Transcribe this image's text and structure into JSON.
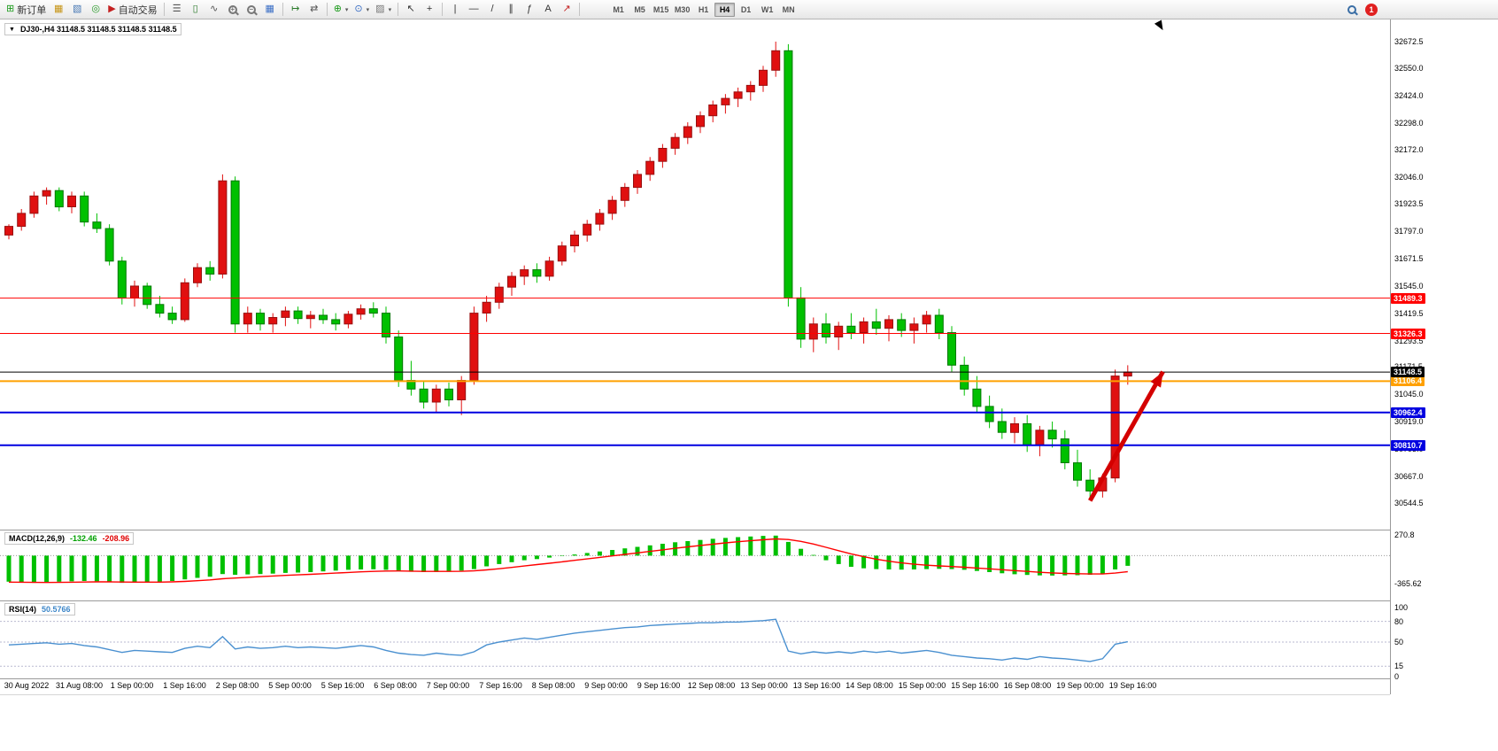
{
  "toolbar": {
    "new_order_label": "新订单",
    "autotrading_label": "自动交易",
    "timeframes": [
      "M1",
      "M5",
      "M15",
      "M30",
      "H1",
      "H4",
      "D1",
      "W1",
      "MN"
    ],
    "active_timeframe": "H4",
    "notification_count": "1"
  },
  "icons": {
    "dropdown": "▼",
    "caret": "▾",
    "new_order": "⊞",
    "charts": "▦",
    "profiles": "▧",
    "market": "◎",
    "autotrading_play": "▶",
    "bars_chart": "☰",
    "candle_chart": "▯",
    "line_chart": "∿",
    "zoom_in_sign": "+",
    "zoom_out_sign": "−",
    "tile_windows": "▦",
    "auto_scroll": "↦",
    "chart_shift": "⇄",
    "indicators": "⊕",
    "periods": "⊙",
    "templates": "▨",
    "cursor": "↖",
    "crosshair": "+",
    "vertical_line": "|",
    "horizontal_line": "―",
    "trendline": "/",
    "channel": "∥",
    "fibonacci": "ƒ",
    "text_tool": "A",
    "arrows_tool": "↗"
  },
  "chart": {
    "symbol_ohlc_label": "DJ30-,H4 31148.5 31148.5 31148.5 31148.5"
  },
  "chart_data": {
    "type": "candlestick",
    "symbol": "DJ30-",
    "timeframe": "H4",
    "color_convention": "chinese (red = up, green = down)",
    "colors": {
      "up": "#e01010",
      "up_border": "#981010",
      "down": "#00c000",
      "down_border": "#007800",
      "macd_hist": "#00c000",
      "macd_signal": "#ff0000",
      "rsi": "#4a90d0",
      "rsi_level": "#b9b9d0"
    },
    "price_axis_labels": [
      32672.5,
      32550.0,
      32424.0,
      32298.0,
      32172.0,
      32046.0,
      31923.5,
      31797.0,
      31671.5,
      31545.0,
      31419.5,
      31293.5,
      31171.5,
      31045.0,
      30919.0,
      30793.0,
      30667.0,
      30544.5
    ],
    "levels": [
      {
        "name": "resistance-line-1",
        "price": 31489.3,
        "color": "#ff0000",
        "width": 1
      },
      {
        "name": "resistance-line-2",
        "price": 31326.3,
        "color": "#ff0000",
        "width": 1
      },
      {
        "name": "support-line-orange",
        "price": 31106.4,
        "color": "#ffa000",
        "width": 2
      },
      {
        "name": "support-line-blue-1",
        "price": 30962.4,
        "color": "#0000e0",
        "width": 2
      },
      {
        "name": "support-line-blue-2",
        "price": 30810.7,
        "color": "#0000e0",
        "width": 2
      },
      {
        "name": "current-price-line",
        "price": 31148.5,
        "color": "#000000",
        "width": 1
      }
    ],
    "arrow": {
      "from_index": 86,
      "from_price": 30555,
      "to_index": 91.8,
      "to_price": 31150,
      "color": "#d40000"
    },
    "time_labels": [
      "30 Aug 2022",
      "31 Aug 08:00",
      "1 Sep 00:00",
      "1 Sep 16:00",
      "2 Sep 08:00",
      "5 Sep 00:00",
      "5 Sep 16:00",
      "6 Sep 08:00",
      "7 Sep 00:00",
      "7 Sep 16:00",
      "8 Sep 08:00",
      "9 Sep 00:00",
      "9 Sep 16:00",
      "12 Sep 08:00",
      "13 Sep 00:00",
      "13 Sep 16:00",
      "14 Sep 08:00",
      "15 Sep 00:00",
      "15 Sep 16:00",
      "16 Sep 08:00",
      "19 Sep 00:00",
      "19 Sep 16:00"
    ],
    "ohlc": [
      [
        31780,
        31830,
        31760,
        31820
      ],
      [
        31820,
        31900,
        31800,
        31880
      ],
      [
        31880,
        31980,
        31860,
        31960
      ],
      [
        31960,
        32000,
        31920,
        31985
      ],
      [
        31985,
        32000,
        31890,
        31910
      ],
      [
        31910,
        31980,
        31880,
        31960
      ],
      [
        31960,
        31980,
        31820,
        31840
      ],
      [
        31840,
        31880,
        31790,
        31810
      ],
      [
        31810,
        31830,
        31640,
        31660
      ],
      [
        31660,
        31680,
        31460,
        31490
      ],
      [
        31490,
        31570,
        31450,
        31545
      ],
      [
        31545,
        31560,
        31440,
        31460
      ],
      [
        31460,
        31500,
        31400,
        31420
      ],
      [
        31420,
        31450,
        31370,
        31390
      ],
      [
        31390,
        31580,
        31380,
        31560
      ],
      [
        31560,
        31650,
        31540,
        31630
      ],
      [
        31630,
        31660,
        31570,
        31600
      ],
      [
        31600,
        32060,
        31580,
        32030
      ],
      [
        32030,
        32050,
        31330,
        31370
      ],
      [
        31370,
        31450,
        31330,
        31420
      ],
      [
        31420,
        31440,
        31340,
        31370
      ],
      [
        31370,
        31420,
        31330,
        31400
      ],
      [
        31400,
        31450,
        31360,
        31430
      ],
      [
        31430,
        31450,
        31370,
        31395
      ],
      [
        31395,
        31430,
        31350,
        31410
      ],
      [
        31410,
        31440,
        31370,
        31390
      ],
      [
        31390,
        31420,
        31340,
        31370
      ],
      [
        31370,
        31430,
        31350,
        31415
      ],
      [
        31415,
        31460,
        31390,
        31440
      ],
      [
        31440,
        31470,
        31400,
        31420
      ],
      [
        31420,
        31450,
        31280,
        31310
      ],
      [
        31310,
        31340,
        31080,
        31110
      ],
      [
        31110,
        31200,
        31040,
        31070
      ],
      [
        31070,
        31110,
        30980,
        31010
      ],
      [
        31010,
        31090,
        30960,
        31070
      ],
      [
        31070,
        31100,
        30990,
        31020
      ],
      [
        31020,
        31130,
        30950,
        31110
      ],
      [
        31110,
        31450,
        31090,
        31420
      ],
      [
        31420,
        31500,
        31380,
        31470
      ],
      [
        31470,
        31560,
        31440,
        31540
      ],
      [
        31540,
        31610,
        31500,
        31590
      ],
      [
        31590,
        31640,
        31550,
        31620
      ],
      [
        31620,
        31650,
        31560,
        31590
      ],
      [
        31590,
        31680,
        31570,
        31660
      ],
      [
        31660,
        31750,
        31640,
        31730
      ],
      [
        31730,
        31800,
        31700,
        31780
      ],
      [
        31780,
        31850,
        31750,
        31830
      ],
      [
        31830,
        31900,
        31800,
        31880
      ],
      [
        31880,
        31960,
        31850,
        31940
      ],
      [
        31940,
        32020,
        31910,
        32000
      ],
      [
        32000,
        32080,
        31970,
        32060
      ],
      [
        32060,
        32140,
        32030,
        32120
      ],
      [
        32120,
        32200,
        32090,
        32180
      ],
      [
        32180,
        32250,
        32150,
        32230
      ],
      [
        32230,
        32300,
        32200,
        32280
      ],
      [
        32280,
        32350,
        32250,
        32330
      ],
      [
        32330,
        32400,
        32300,
        32380
      ],
      [
        32380,
        32430,
        32340,
        32410
      ],
      [
        32410,
        32460,
        32370,
        32440
      ],
      [
        32440,
        32490,
        32400,
        32470
      ],
      [
        32470,
        32560,
        32440,
        32540
      ],
      [
        32540,
        32672,
        32510,
        32630
      ],
      [
        32630,
        32660,
        31450,
        31490
      ],
      [
        31490,
        31540,
        31260,
        31300
      ],
      [
        31300,
        31400,
        31240,
        31370
      ],
      [
        31370,
        31420,
        31280,
        31310
      ],
      [
        31310,
        31380,
        31250,
        31360
      ],
      [
        31360,
        31420,
        31300,
        31330
      ],
      [
        31330,
        31400,
        31280,
        31380
      ],
      [
        31380,
        31440,
        31320,
        31350
      ],
      [
        31350,
        31410,
        31290,
        31390
      ],
      [
        31390,
        31420,
        31310,
        31340
      ],
      [
        31340,
        31400,
        31280,
        31370
      ],
      [
        31370,
        31430,
        31330,
        31410
      ],
      [
        31410,
        31440,
        31300,
        31330
      ],
      [
        31330,
        31360,
        31150,
        31180
      ],
      [
        31180,
        31220,
        31040,
        31070
      ],
      [
        31070,
        31130,
        30960,
        30990
      ],
      [
        30990,
        31040,
        30890,
        30920
      ],
      [
        30920,
        30980,
        30840,
        30870
      ],
      [
        30870,
        30940,
        30820,
        30910
      ],
      [
        30910,
        30950,
        30780,
        30810
      ],
      [
        30810,
        30900,
        30760,
        30880
      ],
      [
        30880,
        30920,
        30800,
        30840
      ],
      [
        30840,
        30880,
        30700,
        30730
      ],
      [
        30730,
        30790,
        30620,
        30650
      ],
      [
        30650,
        30700,
        30560,
        30600
      ],
      [
        30600,
        30680,
        30570,
        30660
      ],
      [
        30660,
        31160,
        30640,
        31130
      ],
      [
        31130,
        31180,
        31090,
        31148.5
      ]
    ],
    "indicators": {
      "macd": {
        "label": "MACD(12,26,9)",
        "value": "-132.46",
        "signal_value": "-208.96",
        "axis_labels": [
          "270.8",
          "-365.62"
        ],
        "histogram": [
          -340,
          -350,
          -355,
          -350,
          -340,
          -335,
          -330,
          -335,
          -345,
          -355,
          -350,
          -345,
          -340,
          -330,
          -310,
          -290,
          -275,
          -240,
          -250,
          -245,
          -240,
          -235,
          -225,
          -220,
          -215,
          -205,
          -195,
          -185,
          -180,
          -178,
          -185,
          -200,
          -210,
          -215,
          -212,
          -205,
          -195,
          -175,
          -140,
          -110,
          -85,
          -60,
          -45,
          -25,
          -5,
          15,
          35,
          55,
          75,
          95,
          115,
          135,
          155,
          175,
          190,
          205,
          220,
          232,
          242,
          250,
          258,
          262,
          180,
          90,
          10,
          -60,
          -110,
          -145,
          -165,
          -175,
          -180,
          -182,
          -180,
          -175,
          -172,
          -175,
          -185,
          -200,
          -215,
          -230,
          -242,
          -252,
          -258,
          -260,
          -258,
          -255,
          -250,
          -240,
          -180,
          -132.46
        ],
        "signal": [
          -345,
          -347,
          -349,
          -350,
          -349,
          -347,
          -344,
          -342,
          -342,
          -344,
          -346,
          -346,
          -345,
          -342,
          -336,
          -327,
          -317,
          -302,
          -292,
          -283,
          -274,
          -266,
          -258,
          -251,
          -244,
          -236,
          -228,
          -219,
          -211,
          -205,
          -201,
          -200,
          -202,
          -205,
          -206,
          -206,
          -204,
          -198,
          -186,
          -171,
          -154,
          -135,
          -117,
          -99,
          -80,
          -61,
          -42,
          -23,
          -3,
          17,
          36,
          56,
          76,
          96,
          115,
          133,
          150,
          167,
          182,
          195,
          208,
          219,
          211,
          187,
          152,
          109,
          65,
          23,
          -14,
          -46,
          -73,
          -95,
          -112,
          -125,
          -134,
          -142,
          -151,
          -161,
          -172,
          -183,
          -195,
          -206,
          -217,
          -225,
          -232,
          -236,
          -239,
          -239,
          -227,
          -208.96
        ]
      },
      "rsi": {
        "label": "RSI(14)",
        "value": "50.5766",
        "levels": [
          80,
          50,
          15
        ],
        "axis_labels": [
          "100",
          "80",
          "50",
          "15",
          "0"
        ],
        "values": [
          46,
          47,
          48,
          49,
          47,
          48,
          45,
          43,
          39,
          35,
          38,
          37,
          36,
          35,
          41,
          44,
          42,
          58,
          40,
          43,
          41,
          42,
          44,
          42,
          43,
          42,
          41,
          43,
          45,
          43,
          38,
          34,
          32,
          31,
          34,
          32,
          31,
          36,
          46,
          50,
          53,
          56,
          54,
          57,
          60,
          63,
          65,
          67,
          69,
          71,
          72,
          74,
          75,
          76,
          77,
          78,
          78,
          79,
          79,
          80,
          81,
          83,
          37,
          33,
          36,
          34,
          36,
          34,
          37,
          35,
          37,
          34,
          36,
          38,
          35,
          31,
          29,
          27,
          26,
          24,
          27,
          25,
          29,
          27,
          26,
          24,
          22,
          26,
          47,
          50.58
        ]
      }
    }
  }
}
